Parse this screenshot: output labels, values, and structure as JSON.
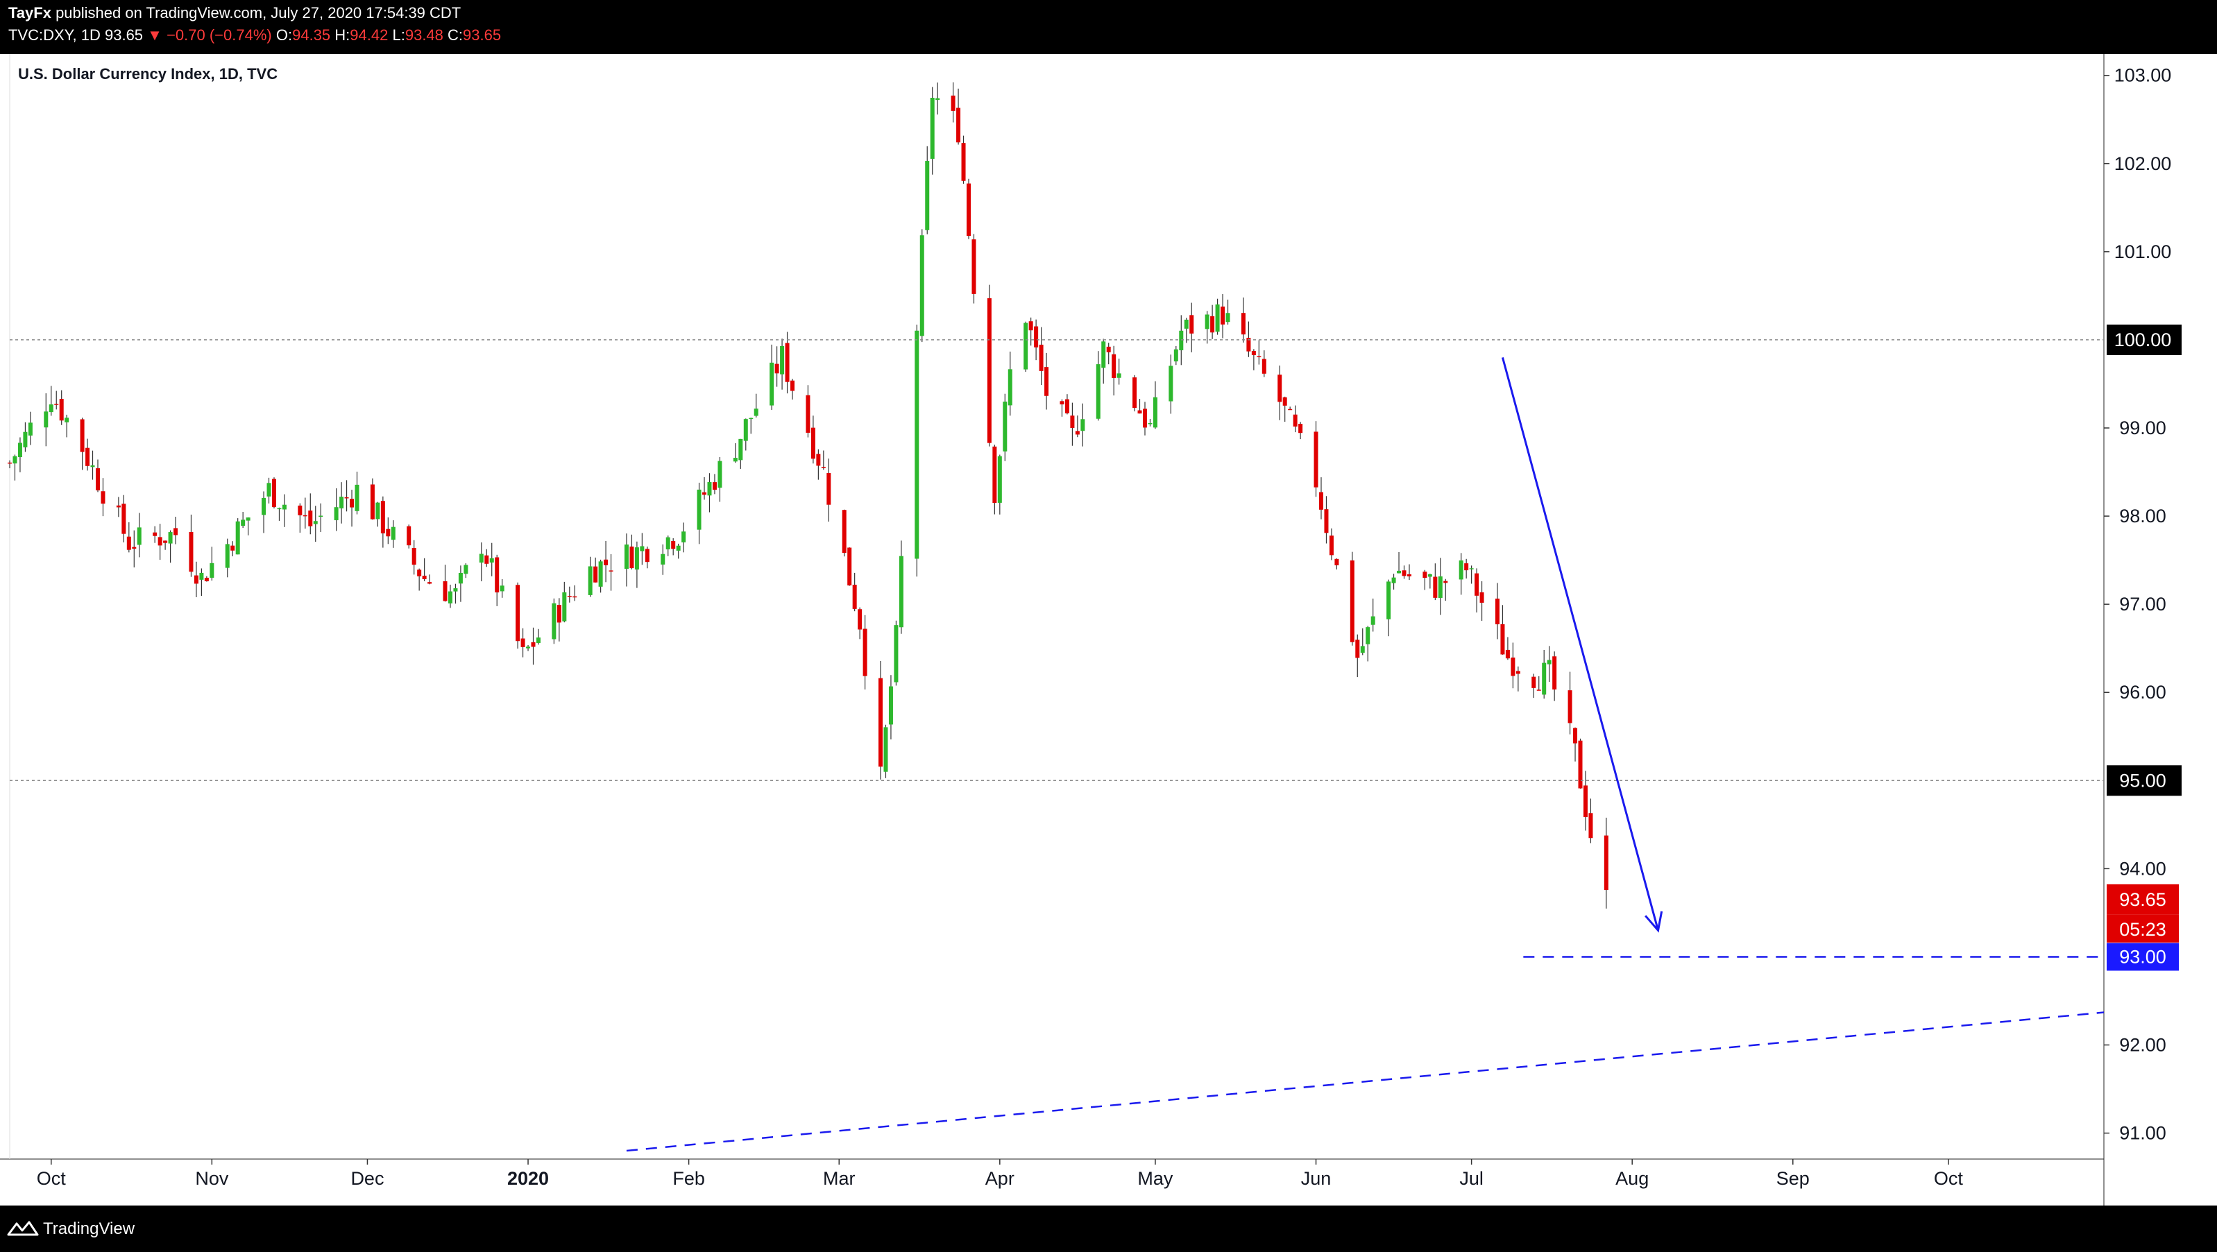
{
  "header": {
    "publisher": "TayFx",
    "published_text": " published on TradingView.com, July 27, 2020 17:54:39 CDT",
    "symbol": "TVC:DXY, 1D",
    "last": "93.65",
    "change_arrow": "▼",
    "change": "−0.70 (−0.74%)",
    "o_label": "O:",
    "o": "94.35",
    "h_label": "H:",
    "h": "94.42",
    "l_label": "L:",
    "l": "93.48",
    "c_label": "C:",
    "c": "93.65"
  },
  "footer": {
    "brand": "TradingView",
    "logo_icon": "tradingview-logo-icon"
  },
  "colors": {
    "up": "#2db82d",
    "down": "#e00000",
    "grid_dashed": "#8a8a8a",
    "annotation": "#1a1aee",
    "label_black": "#000000",
    "label_red": "#e00000",
    "label_blue": "#1a1aff"
  },
  "chart_data": {
    "type": "candlestick",
    "title": "U.S. Dollar Currency Index, 1D, TVC",
    "ylim": [
      90.8,
      103.1
    ],
    "y_ticks": [
      "103.00",
      "102.00",
      "101.00",
      "99.00",
      "98.00",
      "97.00",
      "96.00",
      "94.00",
      "92.00",
      "91.00"
    ],
    "x_ticks": [
      "Oct",
      "Nov",
      "Dec",
      "2020",
      "Feb",
      "Mar",
      "Apr",
      "May",
      "Jun",
      "Jul",
      "Aug",
      "Sep",
      "Oct"
    ],
    "x_range": [
      "2019-09-23",
      "2020-10-31"
    ],
    "horizontal_levels": [
      {
        "value": 100.0,
        "label": "100.00",
        "style": "dotted-gray"
      },
      {
        "value": 95.0,
        "label": "95.00",
        "style": "dotted-gray"
      },
      {
        "value": 93.0,
        "label": "93.00",
        "style": "dashed-blue",
        "from": "2020-07-11"
      }
    ],
    "price_label": {
      "value": 93.65,
      "label": "93.65",
      "countdown": "05:23"
    },
    "trendline": {
      "from": [
        "2020-01-20",
        90.8
      ],
      "to": [
        "2020-10-31",
        92.37
      ],
      "style": "dashed-blue"
    },
    "arrow": {
      "from": [
        "2020-07-07",
        99.8
      ],
      "to": [
        "2020-08-06",
        93.3
      ]
    },
    "waypoints": [
      [
        "2019-09-23",
        98.6
      ],
      [
        "2019-10-01",
        99.4
      ],
      [
        "2019-10-06",
        98.9
      ],
      [
        "2019-10-16",
        97.7
      ],
      [
        "2019-10-25",
        97.8
      ],
      [
        "2019-10-30",
        97.3
      ],
      [
        "2019-11-12",
        98.3
      ],
      [
        "2019-11-20",
        97.9
      ],
      [
        "2019-11-29",
        98.3
      ],
      [
        "2019-12-12",
        97.3
      ],
      [
        "2019-12-18",
        97.1
      ],
      [
        "2019-12-23",
        97.7
      ],
      [
        "2019-12-31",
        96.4
      ],
      [
        "2020-01-05",
        96.8
      ],
      [
        "2020-01-13",
        97.4
      ],
      [
        "2020-01-22",
        97.6
      ],
      [
        "2020-01-30",
        97.8
      ],
      [
        "2020-02-10",
        98.8
      ],
      [
        "2020-02-19",
        99.8
      ],
      [
        "2020-02-27",
        98.5
      ],
      [
        "2020-03-05",
        96.8
      ],
      [
        "2020-03-09",
        95.0
      ],
      [
        "2020-03-12",
        96.6
      ],
      [
        "2020-03-19",
        102.8
      ],
      [
        "2020-03-24",
        102.4
      ],
      [
        "2020-03-31",
        98.3
      ],
      [
        "2020-04-05",
        100.5
      ],
      [
        "2020-04-10",
        99.4
      ],
      [
        "2020-04-15",
        98.9
      ],
      [
        "2020-04-21",
        99.9
      ],
      [
        "2020-04-30",
        99.0
      ],
      [
        "2020-05-06",
        100.1
      ],
      [
        "2020-05-14",
        100.3
      ],
      [
        "2020-05-25",
        99.3
      ],
      [
        "2020-06-01",
        98.4
      ],
      [
        "2020-06-09",
        96.4
      ],
      [
        "2020-06-12",
        96.8
      ],
      [
        "2020-06-16",
        97.4
      ],
      [
        "2020-06-24",
        97.2
      ],
      [
        "2020-06-30",
        97.4
      ],
      [
        "2020-07-08",
        96.4
      ],
      [
        "2020-07-13",
        96.2
      ],
      [
        "2020-07-16",
        96.2
      ],
      [
        "2020-07-21",
        95.3
      ],
      [
        "2020-07-24",
        94.4
      ],
      [
        "2020-07-27",
        93.65
      ]
    ]
  }
}
